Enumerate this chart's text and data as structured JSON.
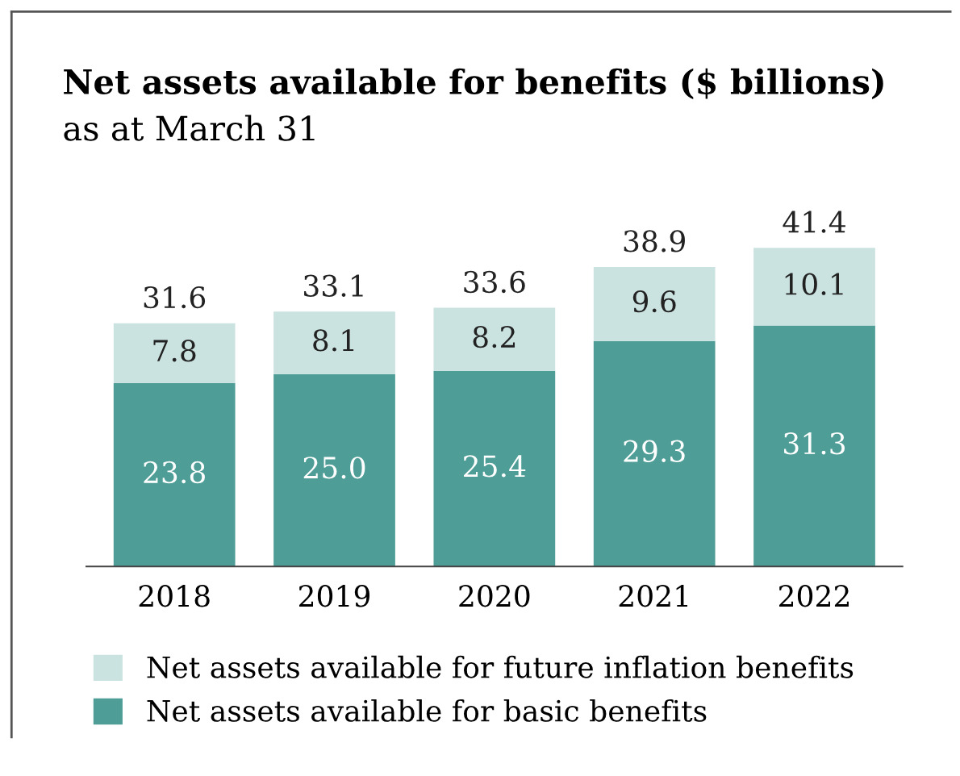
{
  "chart_data": {
    "type": "bar",
    "stacked": true,
    "title": "Net assets available for benefits ($ billions)",
    "subtitle": "as at March 31",
    "categories": [
      "2018",
      "2019",
      "2020",
      "2021",
      "2022"
    ],
    "series": [
      {
        "name": "Net assets available for basic benefits",
        "color": "#4e9e97",
        "values": [
          23.8,
          25.0,
          25.4,
          29.3,
          31.3
        ],
        "value_labels": [
          "23.8",
          "25.0",
          "25.4",
          "29.3",
          "31.3"
        ]
      },
      {
        "name": "Net assets available for future inflation benefits",
        "color": "#cbe3e0",
        "values": [
          7.8,
          8.1,
          8.2,
          9.6,
          10.1
        ],
        "value_labels": [
          "7.8",
          "8.1",
          "8.2",
          "9.6",
          "10.1"
        ]
      }
    ],
    "totals": [
      "31.6",
      "33.1",
      "33.6",
      "38.9",
      "41.4"
    ],
    "legend": "bottom",
    "grid": false
  }
}
